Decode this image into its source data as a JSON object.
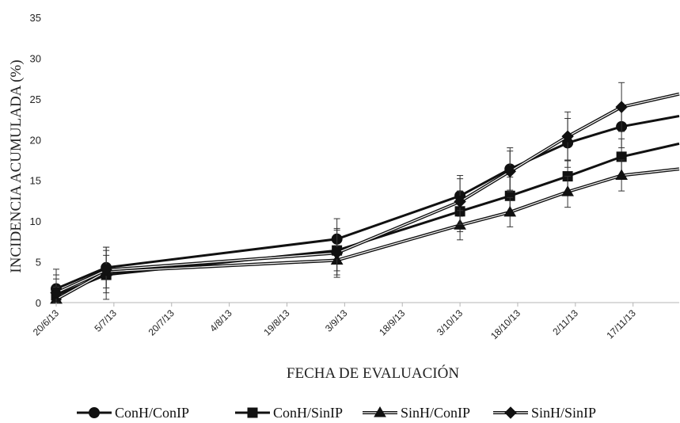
{
  "chart_data": {
    "type": "line",
    "xlabel": "FECHA DE EVALUACIÓN",
    "ylabel": "INCIDENCIA ACUMULADA (%)",
    "ylim": [
      0,
      35
    ],
    "yticks": [
      0,
      5,
      10,
      15,
      20,
      25,
      30,
      35
    ],
    "xticks": [
      "20/6/13",
      "5/7/13",
      "20/7/13",
      "4/8/13",
      "19/8/13",
      "3/9/13",
      "18/9/13",
      "3/10/13",
      "18/10/13",
      "2/11/13",
      "17/11/13"
    ],
    "xlim": [
      "2013-06-20",
      "2013-11-29"
    ],
    "grid": false,
    "legend": "bottom",
    "series": [
      {
        "name": "ConH/ConIP",
        "marker": "circle",
        "color": "#111111",
        "x": [
          "2013-06-20",
          "2013-07-03",
          "2013-09-01",
          "2013-10-03",
          "2013-10-16",
          "2013-10-31",
          "2013-11-14",
          "2013-11-29"
        ],
        "y": [
          1.7,
          4.3,
          7.8,
          13.1,
          16.4,
          19.6,
          21.6,
          22.9
        ],
        "err": [
          2.4,
          2.5,
          2.5,
          2.5,
          2.6,
          3.0,
          2.6,
          null
        ]
      },
      {
        "name": "ConH/SinIP",
        "marker": "square",
        "color": "#111111",
        "x": [
          "2013-06-20",
          "2013-07-03",
          "2013-09-01",
          "2013-10-03",
          "2013-10-16",
          "2013-10-31",
          "2013-11-14",
          "2013-11-29"
        ],
        "y": [
          0.9,
          3.4,
          6.4,
          11.2,
          13.1,
          15.5,
          17.9,
          19.5
        ],
        "err": [
          2.0,
          3.0,
          2.5,
          2.5,
          2.3,
          2.0,
          2.2,
          null
        ]
      },
      {
        "name": "SinH/ConIP",
        "marker": "triangle",
        "color": "#111111",
        "x": [
          "2013-06-20",
          "2013-07-03",
          "2013-09-01",
          "2013-10-03",
          "2013-10-16",
          "2013-10-31",
          "2013-11-14",
          "2013-11-29"
        ],
        "y": [
          0.4,
          3.8,
          5.2,
          9.5,
          11.1,
          13.6,
          15.6,
          16.4
        ],
        "err": [
          1.5,
          2.0,
          1.8,
          1.8,
          1.8,
          1.9,
          1.9,
          null
        ]
      },
      {
        "name": "SinH/SinIP",
        "marker": "diamond",
        "color": "#111111",
        "x": [
          "2013-06-20",
          "2013-07-03",
          "2013-09-01",
          "2013-10-03",
          "2013-10-16",
          "2013-10-31",
          "2013-11-14",
          "2013-11-29"
        ],
        "y": [
          1.2,
          4.0,
          6.1,
          12.4,
          16.1,
          20.4,
          24.0,
          25.6
        ],
        "err": [
          2.2,
          2.8,
          3.0,
          2.8,
          2.5,
          3.0,
          3.0,
          null
        ]
      }
    ]
  }
}
